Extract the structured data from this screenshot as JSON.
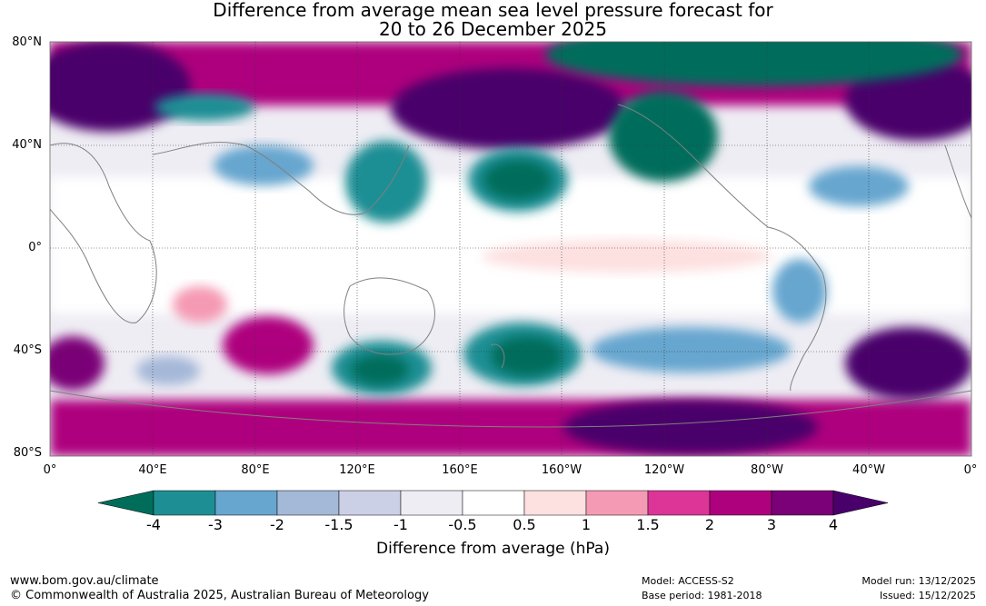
{
  "title_line1": "Difference from average mean sea level pressure forecast for",
  "title_line2": "20 to 26 December 2025",
  "lat_labels": [
    "80°N",
    "40°N",
    "0°",
    "40°S",
    "80°S"
  ],
  "lon_labels": [
    "0°",
    "40°E",
    "80°E",
    "120°E",
    "160°E",
    "160°W",
    "120°W",
    "80°W",
    "40°W",
    "0°"
  ],
  "colorbar": {
    "ticks": [
      "-4",
      "-3",
      "-2",
      "-1.5",
      "-1",
      "-0.5",
      "0.5",
      "1",
      "1.5",
      "2",
      "3",
      "4"
    ],
    "label": "Difference from average (hPa)",
    "colors": {
      "under": "#006d5b",
      "bins": [
        "#1d8f94",
        "#66a6cf",
        "#a4b8d8",
        "#ccd0e6",
        "#efedf4",
        "#ffffff",
        "#fde0e0",
        "#f59ab4",
        "#dd3497",
        "#ae017e",
        "#7a0177"
      ],
      "over": "#49006a"
    }
  },
  "footer": {
    "website": "www.bom.gov.au/climate",
    "copyright": "© Commonwealth of Australia 2025, Australian Bureau of Meteorology",
    "model": "Model: ACCESS-S2",
    "base_period": "Base period: 1981-2018",
    "model_run": "Model run: 13/12/2025",
    "issued": "Issued: 15/12/2025"
  }
}
